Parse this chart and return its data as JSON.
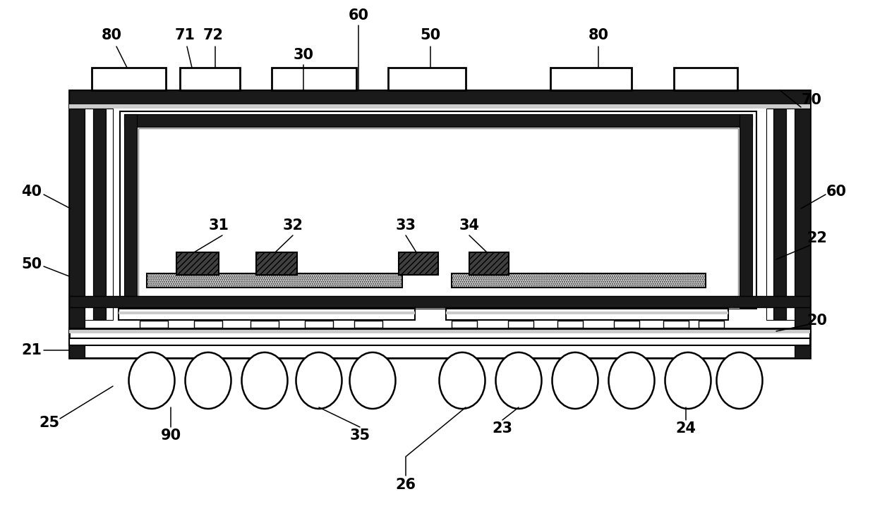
{
  "bg_color": "#ffffff",
  "fill_dark": "#1a1a1a",
  "fill_mid": "#555555",
  "fill_lgray": "#cccccc",
  "fill_white": "#ffffff",
  "fig_width": 12.4,
  "fig_height": 7.18,
  "labels": [
    [
      "80",
      160,
      52
    ],
    [
      "71",
      268,
      52
    ],
    [
      "72",
      305,
      52
    ],
    [
      "60",
      510,
      22
    ],
    [
      "30",
      430,
      80
    ],
    [
      "50",
      610,
      52
    ],
    [
      "80",
      845,
      52
    ],
    [
      "70",
      1140,
      148
    ],
    [
      "40",
      48,
      278
    ],
    [
      "60",
      1175,
      278
    ],
    [
      "22",
      1152,
      342
    ],
    [
      "50",
      48,
      378
    ],
    [
      "20",
      1152,
      460
    ],
    [
      "21",
      48,
      500
    ],
    [
      "31",
      318,
      322
    ],
    [
      "32",
      420,
      322
    ],
    [
      "33",
      575,
      322
    ],
    [
      "34",
      668,
      322
    ],
    [
      "25",
      72,
      600
    ],
    [
      "90",
      240,
      618
    ],
    [
      "35",
      510,
      618
    ],
    [
      "23",
      710,
      608
    ],
    [
      "26",
      575,
      688
    ],
    [
      "24",
      970,
      608
    ]
  ]
}
